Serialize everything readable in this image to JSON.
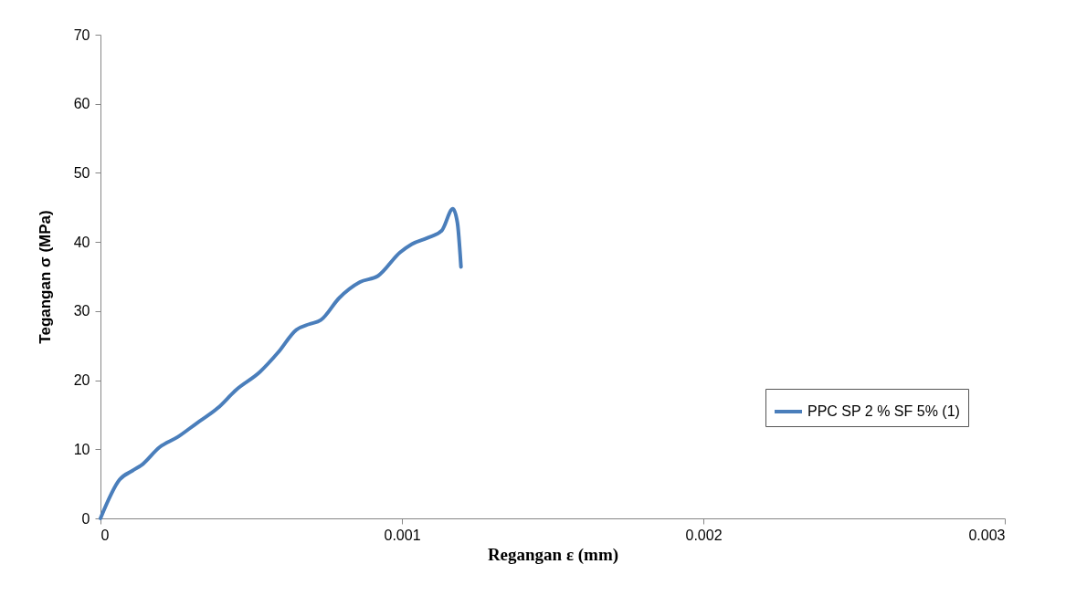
{
  "chart_data": {
    "type": "line",
    "xlabel": "Regangan ε (mm)",
    "ylabel": "Tegangan σ (MPa)",
    "xlim": [
      0,
      0.003
    ],
    "xticks": [
      0,
      0.001,
      0.002,
      0.003
    ],
    "ylim": [
      0,
      70
    ],
    "yticks": [
      0,
      10,
      20,
      30,
      40,
      50,
      60,
      70
    ],
    "grid": false,
    "legend": "right",
    "marker": "none",
    "line_style": "solid",
    "series": [
      {
        "name": "PPC SP 2 % SF 5% (1)",
        "color": "#4a7ebb",
        "x": [
          0,
          6.34e-05,
          0.000106,
          0.000136,
          0.000196,
          0.000257,
          0.000317,
          0.00039,
          0.00045,
          0.000529,
          0.000589,
          0.00065,
          0.000692,
          0.000731,
          0.000792,
          0.000861,
          0.000921,
          0.000994,
          0.001033,
          0.001085,
          0.001133,
          0.001169,
          0.001184,
          0.001196
        ],
        "values": [
          0,
          5.6,
          6.9,
          7.7,
          10.3,
          11.8,
          13.7,
          16.0,
          18.6,
          21.2,
          24.0,
          27.3,
          28.1,
          28.7,
          31.9,
          34.2,
          35.1,
          38.5,
          39.7,
          40.6,
          41.7,
          44.8,
          42.8,
          36.4
        ]
      }
    ]
  }
}
